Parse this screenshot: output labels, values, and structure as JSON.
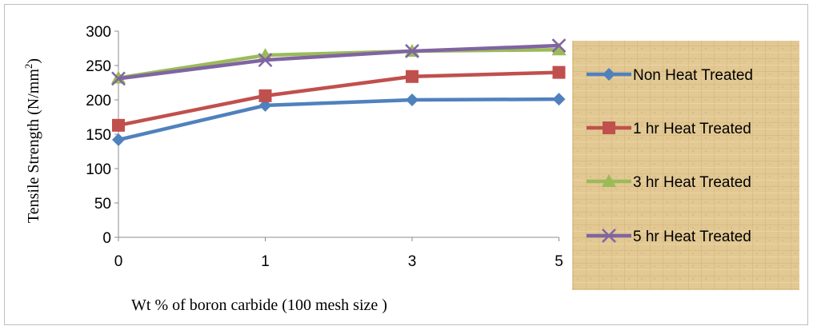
{
  "chart_data": {
    "type": "line",
    "categories": [
      "0",
      "1",
      "3",
      "5"
    ],
    "ylim": [
      0,
      300
    ],
    "yticks": [
      0,
      50,
      100,
      150,
      200,
      250,
      300
    ],
    "xlabel": "Wt % of boron carbide (100 mesh size )",
    "ylabel_main": "Tensile Strength (N/mm",
    "ylabel_sup": "2",
    "ylabel_end": ")",
    "grid": false,
    "legend_position": "right",
    "series": [
      {
        "name": "Non Heat Treated",
        "values": [
          142,
          192,
          200,
          201
        ],
        "color": "#4f81bd",
        "marker": "diamond"
      },
      {
        "name": "1 hr Heat Treated",
        "values": [
          163,
          206,
          234,
          240
        ],
        "color": "#c0504d",
        "marker": "square"
      },
      {
        "name": "3 hr Heat Treated",
        "values": [
          232,
          265,
          271,
          273
        ],
        "color": "#9bbb59",
        "marker": "triangle"
      },
      {
        "name": "5 hr Heat Treated",
        "values": [
          231,
          258,
          271,
          279
        ],
        "color": "#8064a2",
        "marker": "x"
      }
    ]
  }
}
